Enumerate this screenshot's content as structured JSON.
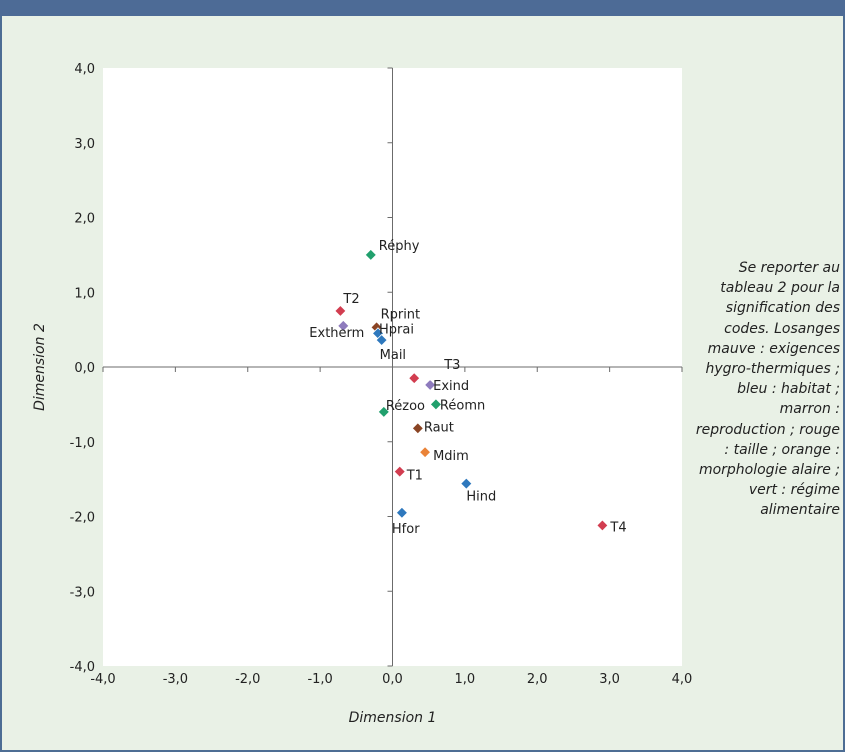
{
  "chart_data": {
    "type": "scatter",
    "xlabel": "Dimension 1",
    "ylabel": "Dimension 2",
    "xlim": [
      -4.0,
      4.0
    ],
    "ylim": [
      -4.0,
      4.0
    ],
    "x_ticks": [
      "-4,0",
      "-3,0",
      "-2,0",
      "-1,0",
      "0,0",
      "1,0",
      "2,0",
      "3,0",
      "4,0"
    ],
    "y_ticks": [
      "-4,0",
      "-3,0",
      "-2,0",
      "-1,0",
      "0,0",
      "1,0",
      "2,0",
      "3,0",
      "4,0"
    ],
    "grid": false,
    "colors": {
      "mauve": "#8e7bbd",
      "bleu": "#2e78bd",
      "marron": "#8a4424",
      "rouge": "#d23d50",
      "orange": "#ea8338",
      "vert": "#21a06d"
    },
    "points": [
      {
        "label": "Réphy",
        "x": -0.3,
        "y": 1.5,
        "group": "vert"
      },
      {
        "label": "T2",
        "x": -0.72,
        "y": 0.75,
        "group": "rouge"
      },
      {
        "label": "Rprint",
        "x": -0.22,
        "y": 0.53,
        "group": "marron"
      },
      {
        "label": "Extherm",
        "x": -0.68,
        "y": 0.55,
        "group": "mauve"
      },
      {
        "label": "Hprai",
        "x": -0.2,
        "y": 0.45,
        "group": "bleu"
      },
      {
        "label": "Mail",
        "x": -0.15,
        "y": 0.36,
        "group": "bleu"
      },
      {
        "label": "T3",
        "x": 0.3,
        "y": -0.15,
        "group": "rouge"
      },
      {
        "label": "Exind",
        "x": 0.52,
        "y": -0.24,
        "group": "mauve"
      },
      {
        "label": "Réomn",
        "x": 0.6,
        "y": -0.5,
        "group": "vert"
      },
      {
        "label": "Rézoo",
        "x": -0.12,
        "y": -0.6,
        "group": "vert"
      },
      {
        "label": "Raut",
        "x": 0.35,
        "y": -0.82,
        "group": "marron"
      },
      {
        "label": "Mdim",
        "x": 0.45,
        "y": -1.14,
        "group": "orange"
      },
      {
        "label": "T1",
        "x": 0.1,
        "y": -1.4,
        "group": "rouge"
      },
      {
        "label": "Hind",
        "x": 1.02,
        "y": -1.56,
        "group": "bleu"
      },
      {
        "label": "Hfor",
        "x": 0.13,
        "y": -1.95,
        "group": "bleu"
      },
      {
        "label": "T4",
        "x": 2.9,
        "y": -2.12,
        "group": "rouge"
      }
    ]
  },
  "note": "Se reporter au tableau 2 pour la signification des codes. Losanges mauve : exigences hygro-thermiques ; bleu : habitat ; marron : reproduction ; rouge : taille ; orange : morphologie alaire ; vert : régime alimentaire"
}
